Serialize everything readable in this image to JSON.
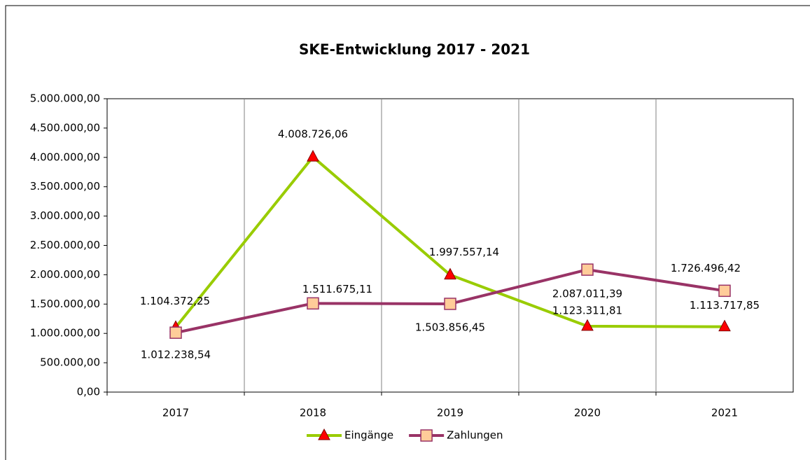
{
  "chart_data": {
    "type": "line",
    "title": "SKE-Entwicklung 2017 - 2021",
    "categories": [
      "2017",
      "2018",
      "2019",
      "2020",
      "2021"
    ],
    "series": [
      {
        "name": "Eingänge",
        "color": "#99cc00",
        "marker_color": "#ff0000",
        "values": [
          1104372.25,
          4008726.06,
          1997557.14,
          1123311.81,
          1113717.85
        ],
        "value_labels": [
          "1.104.372,25",
          "4.008.726,06",
          "1.997.557,14",
          "1.123.311,81",
          "1.113.717,85"
        ]
      },
      {
        "name": "Zahlungen",
        "color": "#993366",
        "marker_color": "#ffcc99",
        "values": [
          1012238.54,
          1511675.11,
          1503856.45,
          2087011.39,
          1726496.42
        ],
        "value_labels": [
          "1.012.238,54",
          "1.511.675,11",
          "1.503.856,45",
          "2.087.011,39",
          "1.726.496,42"
        ]
      }
    ],
    "ylim": [
      0,
      5000000
    ],
    "yticks": [
      {
        "value": 0,
        "label": "0,00"
      },
      {
        "value": 500000,
        "label": "500.000,00"
      },
      {
        "value": 1000000,
        "label": "1.000.000,00"
      },
      {
        "value": 1500000,
        "label": "1.500.000,00"
      },
      {
        "value": 2000000,
        "label": "2.000.000,00"
      },
      {
        "value": 2500000,
        "label": "2.500.000,00"
      },
      {
        "value": 3000000,
        "label": "3.000.000,00"
      },
      {
        "value": 3500000,
        "label": "3.500.000,00"
      },
      {
        "value": 4000000,
        "label": "4.000.000,00"
      },
      {
        "value": 4500000,
        "label": "4.500.000,00"
      },
      {
        "value": 5000000,
        "label": "5.000.000,00"
      }
    ],
    "grid": true,
    "legend": "bottom"
  }
}
